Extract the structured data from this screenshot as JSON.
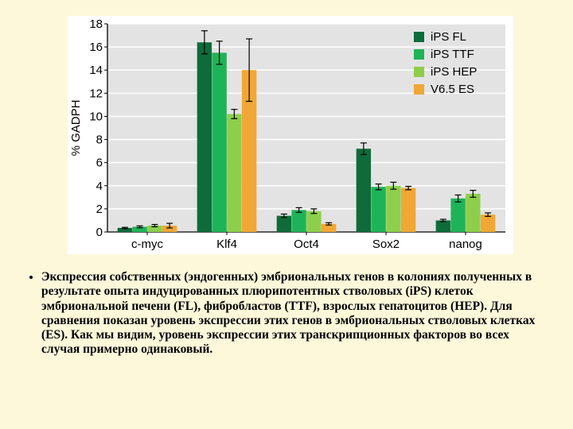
{
  "chart": {
    "type": "bar",
    "background_color": "#ffffff",
    "plot_background_color": "#e3e3e3",
    "grid_color": "#ffffff",
    "axis_color": "#000000",
    "ylim": [
      0,
      18
    ],
    "ytick_step": 2,
    "tick_fontsize": 15,
    "ylabel": "% GADPH",
    "ylabel_fontsize": 15,
    "categories": [
      "c-myc",
      "Klf4",
      "Oct4",
      "Sox2",
      "nanog"
    ],
    "category_fontsize": 15,
    "series": [
      {
        "name": "iPS FL",
        "color": "#0e6b3a",
        "values": [
          0.35,
          16.4,
          1.4,
          7.2,
          1.0
        ],
        "err": [
          0.05,
          1.0,
          0.15,
          0.5,
          0.1
        ]
      },
      {
        "name": "iPS TTF",
        "color": "#1fb357",
        "values": [
          0.45,
          15.5,
          1.9,
          3.9,
          2.9
        ],
        "err": [
          0.08,
          1.0,
          0.2,
          0.25,
          0.3
        ]
      },
      {
        "name": "iPS HEP",
        "color": "#8dcf4c",
        "values": [
          0.55,
          10.2,
          1.8,
          4.0,
          3.3
        ],
        "err": [
          0.1,
          0.4,
          0.2,
          0.3,
          0.3
        ]
      },
      {
        "name": "V6.5 ES",
        "color": "#f0a735",
        "values": [
          0.55,
          14.0,
          0.7,
          3.8,
          1.5
        ],
        "err": [
          0.2,
          2.7,
          0.1,
          0.15,
          0.15
        ]
      }
    ],
    "bar_group_width": 0.75,
    "bar_series_gap": 0.02,
    "legend": {
      "box_size": 13,
      "fontsize": 15,
      "text_color": "#000000"
    },
    "error_bar": {
      "color": "#000000",
      "width": 1.2,
      "cap": 4
    }
  },
  "caption": {
    "text": "Экспрессия собственных (эндогенных) эмбриональных генов в колониях полученных в результате опыта индуцированных плюрипотентных стволовых (iPS) клеток эмбриональной печени (FL), фибробластов (TTF), взрослых гепатоцитов (HEP). Для сравнения показан уровень экспрессии этих генов в эмбриональных стволовых клетках (ES). Как мы видим, уровень экспрессии этих транскрипционных факторов во всех случая примерно одинаковый.",
    "fontsize": 15.5,
    "font_weight": "bold",
    "color": "#000000"
  }
}
